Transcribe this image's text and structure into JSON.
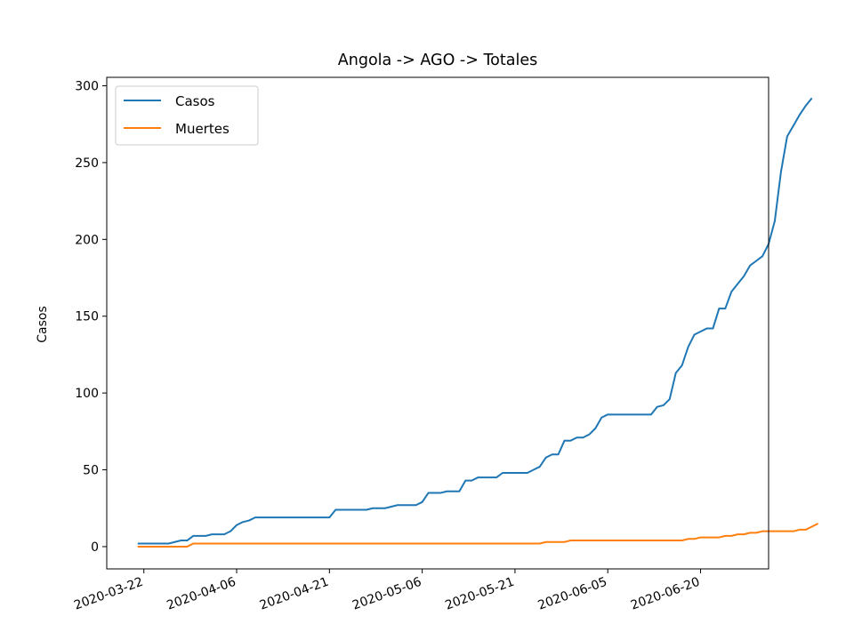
{
  "chart_data": {
    "type": "line",
    "title": "Angola -> AGO -> Totales",
    "xlabel": "",
    "ylabel": "Casos",
    "start_date": "2020-03-21",
    "xlim": [
      "2020-03-16",
      "2020-07-01"
    ],
    "ylim": [
      -14.5,
      305.5
    ],
    "x_ticks": [
      "2020-03-22",
      "2020-04-06",
      "2020-04-21",
      "2020-05-06",
      "2020-05-21",
      "2020-06-05",
      "2020-06-20"
    ],
    "y_ticks": [
      0,
      50,
      100,
      150,
      200,
      250,
      300
    ],
    "grid": false,
    "legend": "top-left",
    "series": [
      {
        "name": "Casos",
        "color": "#1f77b4",
        "values": [
          2,
          2,
          2,
          2,
          2,
          2,
          3,
          4,
          4,
          7,
          7,
          7,
          8,
          8,
          8,
          10,
          14,
          16,
          17,
          19,
          19,
          19,
          19,
          19,
          19,
          19,
          19,
          19,
          19,
          19,
          19,
          19,
          24,
          24,
          24,
          24,
          24,
          24,
          25,
          25,
          25,
          26,
          27,
          27,
          27,
          27,
          29,
          35,
          35,
          35,
          36,
          36,
          36,
          43,
          43,
          45,
          45,
          45,
          45,
          48,
          48,
          48,
          48,
          48,
          50,
          52,
          58,
          60,
          60,
          69,
          69,
          71,
          71,
          73,
          77,
          84,
          86,
          86,
          86,
          86,
          86,
          86,
          86,
          86,
          91,
          92,
          96,
          113,
          118,
          130,
          138,
          140,
          142,
          142,
          155,
          155,
          166,
          171,
          176,
          183,
          186,
          189,
          197,
          212,
          244,
          267,
          274,
          281,
          287,
          292
        ]
      },
      {
        "name": "Muertes",
        "color": "#ff7f0e",
        "values": [
          0,
          0,
          0,
          0,
          0,
          0,
          0,
          0,
          0,
          2,
          2,
          2,
          2,
          2,
          2,
          2,
          2,
          2,
          2,
          2,
          2,
          2,
          2,
          2,
          2,
          2,
          2,
          2,
          2,
          2,
          2,
          2,
          2,
          2,
          2,
          2,
          2,
          2,
          2,
          2,
          2,
          2,
          2,
          2,
          2,
          2,
          2,
          2,
          2,
          2,
          2,
          2,
          2,
          2,
          2,
          2,
          2,
          2,
          2,
          2,
          2,
          2,
          2,
          2,
          2,
          2,
          3,
          3,
          3,
          3,
          4,
          4,
          4,
          4,
          4,
          4,
          4,
          4,
          4,
          4,
          4,
          4,
          4,
          4,
          4,
          4,
          4,
          4,
          4,
          5,
          5,
          6,
          6,
          6,
          6,
          7,
          7,
          8,
          8,
          9,
          9,
          10,
          10,
          10,
          10,
          10,
          10,
          11,
          11,
          13,
          15
        ]
      }
    ]
  }
}
